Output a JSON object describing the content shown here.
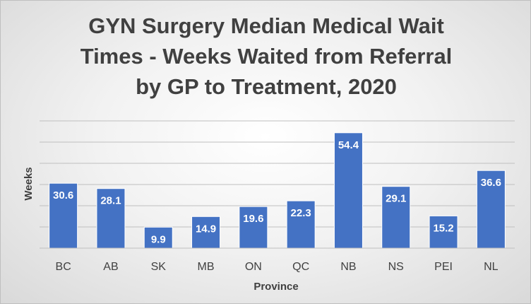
{
  "chart_data": {
    "type": "bar",
    "title_lines": [
      "GYN Surgery Median Medical Wait",
      "Times - Weeks Waited from Referral",
      "by GP to Treatment, 2020"
    ],
    "xlabel": "Province",
    "ylabel": "Weeks",
    "categories": [
      "BC",
      "AB",
      "SK",
      "MB",
      "ON",
      "QC",
      "NB",
      "NS",
      "PEI",
      "NL"
    ],
    "values": [
      30.6,
      28.1,
      9.9,
      14.9,
      19.6,
      22.3,
      54.4,
      29.1,
      15.2,
      36.6
    ],
    "data_labels": [
      "30.6",
      "28.1",
      "9.9",
      "14.9",
      "19.6",
      "22.3",
      "54.4",
      "29.1",
      "15.2",
      "36.6"
    ],
    "ylim": [
      0,
      60
    ],
    "grid": true,
    "y_tick_labels_shown": false,
    "legend": "none",
    "bar_color": "#4472c4",
    "bar_edge_color": "#ffffff",
    "grid_color": "#bfbfbf",
    "text_color": "#404040"
  }
}
